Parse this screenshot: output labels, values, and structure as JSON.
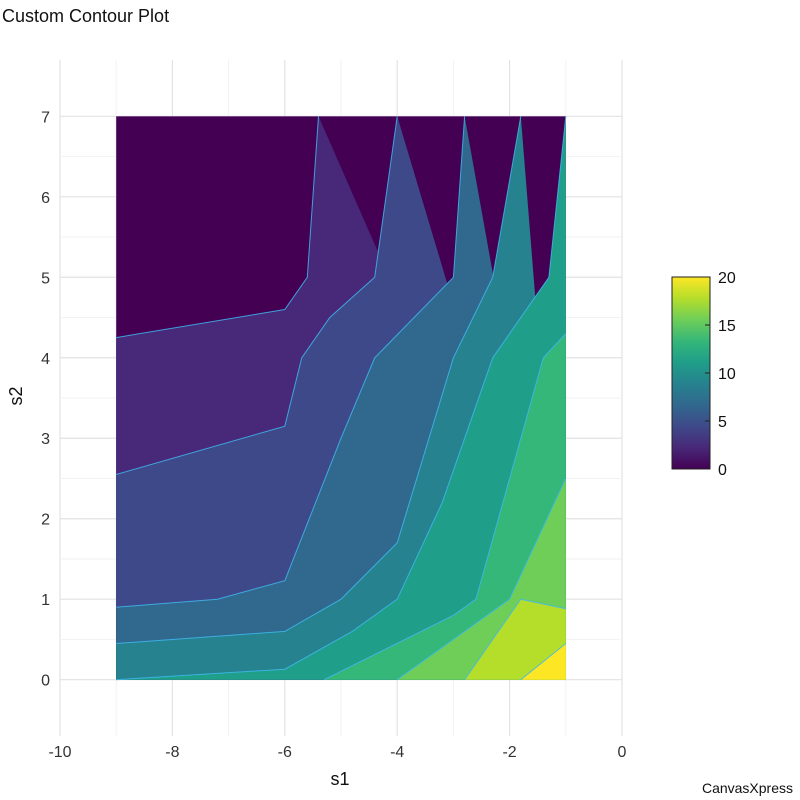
{
  "title": "Custom Contour Plot",
  "watermark": "CanvasXpress",
  "chart_data": {
    "type": "contour",
    "title": "Custom Contour Plot",
    "xlabel": "s1",
    "ylabel": "s2",
    "xlim": [
      -10,
      0
    ],
    "ylim": [
      -0.7,
      7.7
    ],
    "x_ticks": [
      "-10",
      "-8",
      "-6",
      "-4",
      "-2",
      "0"
    ],
    "y_ticks": [
      "0",
      "1",
      "2",
      "3",
      "4",
      "5",
      "6",
      "7"
    ],
    "grid": true,
    "data_extent": {
      "x": [
        -9,
        -1
      ],
      "y": [
        0,
        7
      ]
    },
    "colorscale": {
      "name": "viridis",
      "range": [
        0,
        20
      ],
      "ticks": [
        "0",
        "5",
        "10",
        "15",
        "20"
      ],
      "colors": [
        "#440154",
        "#482878",
        "#3e4989",
        "#31688e",
        "#26828e",
        "#1f9e89",
        "#35b779",
        "#6ece58",
        "#b5de2b",
        "#fde725"
      ]
    },
    "contour_line_color": "#3fb8f0",
    "levels": [
      2,
      4,
      6,
      8,
      10,
      12,
      14,
      16,
      18
    ],
    "bands": [
      {
        "range": "0-2",
        "color": "#440154"
      },
      {
        "range": "2-4",
        "color": "#482878"
      },
      {
        "range": "4-6",
        "color": "#3e4989"
      },
      {
        "range": "6-8",
        "color": "#31688e"
      },
      {
        "range": "8-10",
        "color": "#26828e"
      },
      {
        "range": "10-12",
        "color": "#1f9e89"
      },
      {
        "range": "12-14",
        "color": "#35b779"
      },
      {
        "range": "14-16",
        "color": "#6ece58"
      },
      {
        "range": "16-18",
        "color": "#b5de2b"
      },
      {
        "range": "18-20",
        "color": "#fde725"
      }
    ],
    "contours": [
      {
        "level": 2,
        "points": [
          [
            -9,
            4.25
          ],
          [
            -6,
            4.6
          ],
          [
            -5.6,
            5
          ],
          [
            -5.4,
            7
          ]
        ]
      },
      {
        "level": 4,
        "points": [
          [
            -9,
            2.55
          ],
          [
            -6,
            3.15
          ],
          [
            -5.7,
            4
          ],
          [
            -5.2,
            4.5
          ],
          [
            -4.4,
            5
          ],
          [
            -4,
            7
          ]
        ]
      },
      {
        "level": 6,
        "points": [
          [
            -9,
            0.9
          ],
          [
            -7.2,
            1
          ],
          [
            -6,
            1.23
          ],
          [
            -5,
            3
          ],
          [
            -4.4,
            4
          ],
          [
            -3,
            5
          ],
          [
            -2.8,
            7
          ]
        ]
      },
      {
        "level": 8,
        "points": [
          [
            -9,
            0.45
          ],
          [
            -6,
            0.6
          ],
          [
            -5,
            1
          ],
          [
            -4,
            1.7
          ],
          [
            -3,
            4
          ],
          [
            -2.3,
            5
          ],
          [
            -1.8,
            7
          ]
        ]
      },
      {
        "level": 10,
        "points": [
          [
            -9,
            0
          ],
          [
            -6,
            0.13
          ],
          [
            -4.8,
            0.6
          ],
          [
            -4,
            1
          ],
          [
            -3.2,
            2.2
          ],
          [
            -2.3,
            4
          ],
          [
            -1.3,
            5
          ],
          [
            -1,
            7
          ]
        ]
      },
      {
        "level": 12,
        "points": [
          [
            -5.3,
            0
          ],
          [
            -3,
            0.8
          ],
          [
            -2.6,
            1
          ],
          [
            -1.4,
            4
          ],
          [
            -1,
            4.3
          ]
        ]
      },
      {
        "level": 14,
        "points": [
          [
            -4,
            0
          ],
          [
            -2,
            1
          ],
          [
            -1,
            2.5
          ]
        ]
      },
      {
        "level": 16,
        "points": [
          [
            -2.8,
            0
          ],
          [
            -1.8,
            1
          ],
          [
            -1,
            0.88
          ]
        ]
      },
      {
        "level": 18,
        "points": [
          [
            -1.8,
            0
          ],
          [
            -1,
            0.45
          ]
        ]
      }
    ]
  }
}
